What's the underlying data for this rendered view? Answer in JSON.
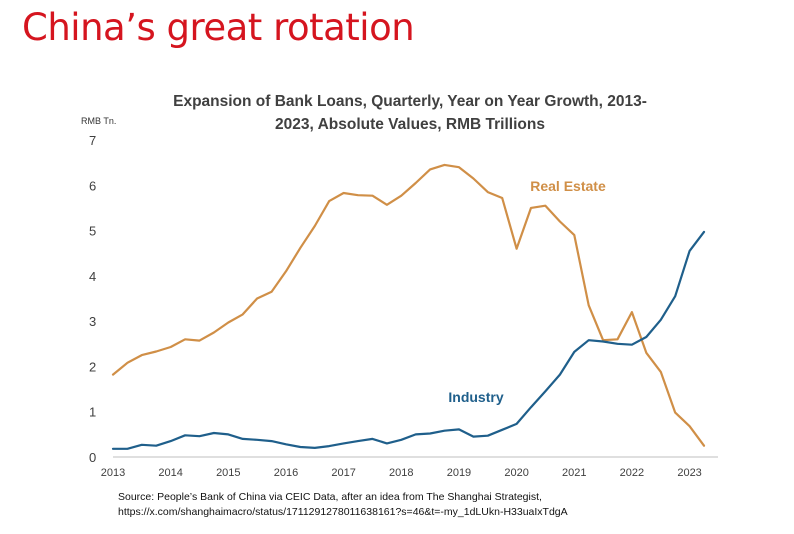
{
  "headline": "China’s great rotation",
  "source": {
    "line1": "Source: People’s Bank of China via CEIC Data, after an idea from The Shanghai Strategist,",
    "line2": "https://x.com/shanghaimacro/status/1711291278011638161?s=46&t=-my_1dLUkn-H33uaIxTdgA"
  },
  "chart_data": {
    "type": "line",
    "title_line1": "Expansion of  Bank Loans, Quarterly, Year on Year Growth, 2013-",
    "title_line2": "2023, Absolute Values,  RMB Trillions",
    "y_unit_label": "RMB Tn.",
    "ylim": [
      0,
      7
    ],
    "yticks": [
      "0",
      "1",
      "2",
      "3",
      "4",
      "5",
      "6",
      "7"
    ],
    "xlim": [
      2013.0,
      2023.25
    ],
    "xticks": [
      "2013",
      "2014",
      "2015",
      "2016",
      "2017",
      "2018",
      "2019",
      "2020",
      "2021",
      "2022",
      "2023"
    ],
    "grid": false,
    "legend": "inline labels",
    "series": [
      {
        "name": "Real Estate",
        "color": "#d08f47",
        "x": [
          2013.0,
          2013.25,
          2013.5,
          2013.75,
          2014.0,
          2014.25,
          2014.5,
          2014.75,
          2015.0,
          2015.25,
          2015.5,
          2015.75,
          2016.0,
          2016.25,
          2016.5,
          2016.75,
          2017.0,
          2017.25,
          2017.5,
          2017.75,
          2018.0,
          2018.25,
          2018.5,
          2018.75,
          2019.0,
          2019.25,
          2019.5,
          2019.75,
          2020.0,
          2020.25,
          2020.5,
          2020.75,
          2021.0,
          2021.25,
          2021.5,
          2021.75,
          2022.0,
          2022.25,
          2022.5,
          2022.75,
          2023.0,
          2023.25
        ],
        "values": [
          1.82,
          2.08,
          2.25,
          2.33,
          2.43,
          2.6,
          2.57,
          2.75,
          2.97,
          3.15,
          3.5,
          3.65,
          4.1,
          4.62,
          5.1,
          5.65,
          5.83,
          5.78,
          5.77,
          5.57,
          5.77,
          6.05,
          6.35,
          6.45,
          6.4,
          6.15,
          5.85,
          5.72,
          4.6,
          5.5,
          5.55,
          5.2,
          4.9,
          3.35,
          2.58,
          2.6,
          3.2,
          2.3,
          1.88,
          0.98,
          0.68,
          0.25
        ]
      },
      {
        "name": "Industry",
        "color": "#1f5f8b",
        "x": [
          2013.0,
          2013.25,
          2013.5,
          2013.75,
          2014.0,
          2014.25,
          2014.5,
          2014.75,
          2015.0,
          2015.25,
          2015.5,
          2015.75,
          2016.0,
          2016.25,
          2016.5,
          2016.75,
          2017.0,
          2017.25,
          2017.5,
          2017.75,
          2018.0,
          2018.25,
          2018.5,
          2018.75,
          2019.0,
          2019.25,
          2019.5,
          2019.75,
          2020.0,
          2020.25,
          2020.5,
          2020.75,
          2021.0,
          2021.25,
          2021.5,
          2021.75,
          2022.0,
          2022.25,
          2022.5,
          2022.75,
          2023.0,
          2023.25
        ],
        "values": [
          0.18,
          0.18,
          0.27,
          0.25,
          0.35,
          0.48,
          0.46,
          0.53,
          0.5,
          0.4,
          0.38,
          0.35,
          0.28,
          0.22,
          0.2,
          0.24,
          0.3,
          0.35,
          0.4,
          0.3,
          0.38,
          0.5,
          0.52,
          0.58,
          0.61,
          0.45,
          0.47,
          0.6,
          0.73,
          1.1,
          1.45,
          1.82,
          2.32,
          2.58,
          2.55,
          2.5,
          2.48,
          2.65,
          3.03,
          3.55,
          4.55,
          4.97
        ]
      }
    ]
  }
}
